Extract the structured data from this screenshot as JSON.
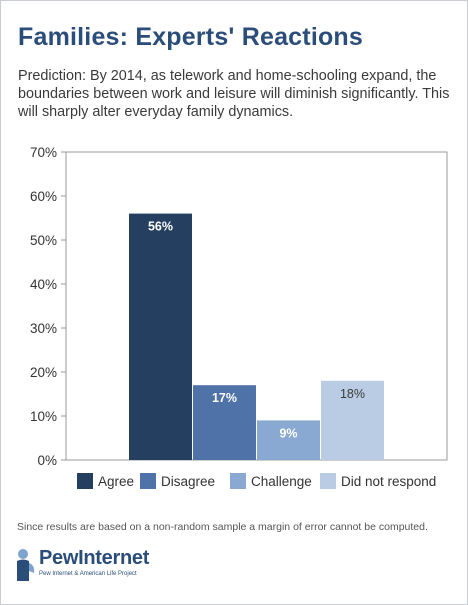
{
  "page": {
    "title": "Families: Experts' Reactions",
    "subtitle": "Prediction: By 2014, as telework and home-schooling expand, the boundaries between work and leisure will diminish significantly. This will sharply alter everyday family dynamics.",
    "footnote": "Since results are based on a non-random sample a margin of error cannot be computed.",
    "logo": {
      "wordmark": "PewInternet",
      "tagline": "Pew Internet & American Life Project",
      "icon": "pew-person-icon"
    }
  },
  "chart_data": {
    "type": "bar",
    "categories": [
      "Agree",
      "Disagree",
      "Challenge",
      "Did not respond"
    ],
    "values": [
      56,
      17,
      9,
      18
    ],
    "data_labels": [
      "56%",
      "17%",
      "9%",
      "18%"
    ],
    "colors": [
      "#243f60",
      "#4f73a8",
      "#89a8d2",
      "#b9cce4"
    ],
    "label_colors": [
      "#ffffff",
      "#ffffff",
      "#ffffff",
      "#3a3a3a"
    ],
    "yticks": [
      0,
      10,
      20,
      30,
      40,
      50,
      60,
      70
    ],
    "ytick_labels": [
      "0%",
      "10%",
      "20%",
      "30%",
      "40%",
      "50%",
      "60%",
      "70%"
    ],
    "ylim": [
      0,
      70
    ],
    "grid": false,
    "legend": "bottom"
  }
}
